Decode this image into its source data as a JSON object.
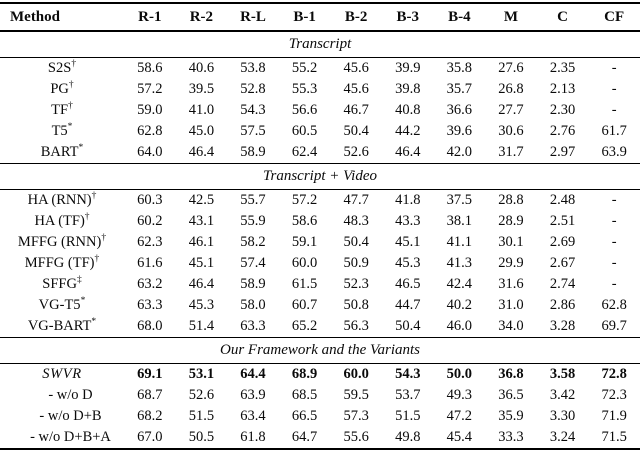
{
  "table": {
    "columns": [
      "Method",
      "R-1",
      "R-2",
      "R-L",
      "B-1",
      "B-2",
      "B-3",
      "B-4",
      "M",
      "C",
      "CF"
    ],
    "sections": [
      {
        "label": "Transcript",
        "rows": [
          {
            "method": "S2S",
            "sup": "†",
            "values": [
              "58.6",
              "40.6",
              "53.8",
              "55.2",
              "45.6",
              "39.9",
              "35.8",
              "27.6",
              "2.35",
              "-"
            ]
          },
          {
            "method": "PG",
            "sup": "†",
            "values": [
              "57.2",
              "39.5",
              "52.8",
              "55.3",
              "45.6",
              "39.8",
              "35.7",
              "26.8",
              "2.13",
              "-"
            ]
          },
          {
            "method": "TF",
            "sup": "†",
            "values": [
              "59.0",
              "41.0",
              "54.3",
              "56.6",
              "46.7",
              "40.8",
              "36.6",
              "27.7",
              "2.30",
              "-"
            ]
          },
          {
            "method": "T5",
            "sup": "*",
            "values": [
              "62.8",
              "45.0",
              "57.5",
              "60.5",
              "50.4",
              "44.2",
              "39.6",
              "30.6",
              "2.76",
              "61.7"
            ]
          },
          {
            "method": "BART",
            "sup": "*",
            "values": [
              "64.0",
              "46.4",
              "58.9",
              "62.4",
              "52.6",
              "46.4",
              "42.0",
              "31.7",
              "2.97",
              "63.9"
            ]
          }
        ]
      },
      {
        "label": "Transcript + Video",
        "rows": [
          {
            "method": "HA (RNN)",
            "sup": "†",
            "values": [
              "60.3",
              "42.5",
              "55.7",
              "57.2",
              "47.7",
              "41.8",
              "37.5",
              "28.8",
              "2.48",
              "-"
            ]
          },
          {
            "method": "HA (TF)",
            "sup": "†",
            "values": [
              "60.2",
              "43.1",
              "55.9",
              "58.6",
              "48.3",
              "43.3",
              "38.1",
              "28.9",
              "2.51",
              "-"
            ]
          },
          {
            "method": "MFFG (RNN)",
            "sup": "†",
            "values": [
              "62.3",
              "46.1",
              "58.2",
              "59.1",
              "50.4",
              "45.1",
              "41.1",
              "30.1",
              "2.69",
              "-"
            ]
          },
          {
            "method": "MFFG (TF)",
            "sup": "†",
            "values": [
              "61.6",
              "45.1",
              "57.4",
              "60.0",
              "50.9",
              "45.3",
              "41.3",
              "29.9",
              "2.67",
              "-"
            ]
          },
          {
            "method": "SFFG",
            "sup": "‡",
            "values": [
              "63.2",
              "46.4",
              "58.9",
              "61.5",
              "52.3",
              "46.5",
              "42.4",
              "31.6",
              "2.74",
              "-"
            ]
          },
          {
            "method": "VG-T5",
            "sup": "*",
            "values": [
              "63.3",
              "45.3",
              "58.0",
              "60.7",
              "50.8",
              "44.7",
              "40.2",
              "31.0",
              "2.86",
              "62.8"
            ]
          },
          {
            "method": "VG-BART",
            "sup": "*",
            "values": [
              "68.0",
              "51.4",
              "63.3",
              "65.2",
              "56.3",
              "50.4",
              "46.0",
              "34.0",
              "3.28",
              "69.7"
            ]
          }
        ]
      },
      {
        "label": "Our Framework and the Variants",
        "rows": [
          {
            "method": "SWVR",
            "sup": "",
            "italic": true,
            "bold": true,
            "values": [
              "69.1",
              "53.1",
              "64.4",
              "68.9",
              "60.0",
              "54.3",
              "50.0",
              "36.8",
              "3.58",
              "72.8"
            ]
          },
          {
            "method": "- w/o D",
            "sup": "",
            "indent": true,
            "values": [
              "68.7",
              "52.6",
              "63.9",
              "68.5",
              "59.5",
              "53.7",
              "49.3",
              "36.5",
              "3.42",
              "72.3"
            ]
          },
          {
            "method": "- w/o D+B",
            "sup": "",
            "indent": true,
            "values": [
              "68.2",
              "51.5",
              "63.4",
              "66.5",
              "57.3",
              "51.5",
              "47.2",
              "35.9",
              "3.30",
              "71.9"
            ]
          },
          {
            "method": "- w/o D+B+A",
            "sup": "",
            "indent": true,
            "values": [
              "67.0",
              "50.5",
              "61.8",
              "64.7",
              "55.6",
              "49.8",
              "45.4",
              "33.3",
              "3.24",
              "71.5"
            ]
          }
        ]
      }
    ]
  }
}
